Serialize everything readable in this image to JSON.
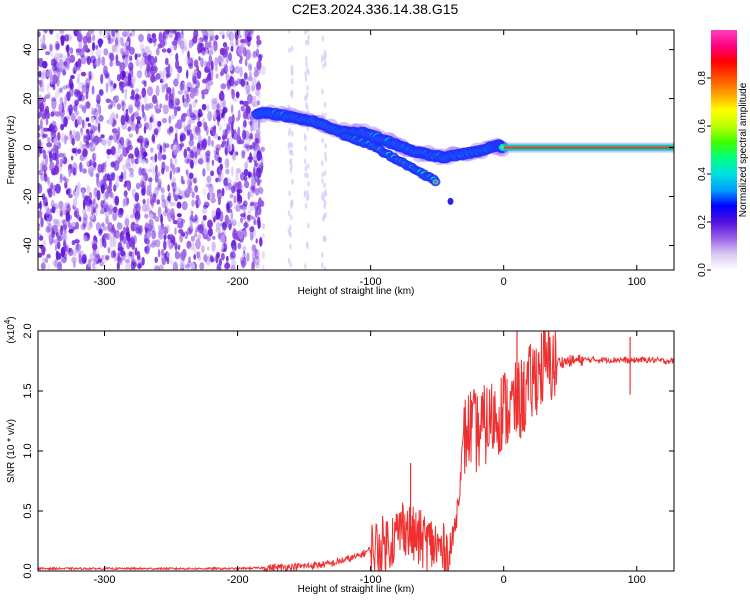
{
  "title": "C2E3.2024.336.14.38.G15",
  "colors": {
    "snr_line": "#ee3030",
    "spectrum_background_scatter": "#7b2bd6",
    "ridge_core": "#ff4040",
    "ridge_mid": "#00e0d0",
    "ridge_outer": "#2030ff"
  },
  "chart_data": [
    {
      "type": "heatmap",
      "name": "spectrogram",
      "xlabel": "Height of straight line (km)",
      "ylabel": "Frequency (Hz)",
      "xlim": [
        -350,
        128
      ],
      "ylim": [
        -50,
        48
      ],
      "xticks": [
        -300,
        -200,
        -100,
        0,
        100
      ],
      "yticks": [
        -40,
        -20,
        0,
        20,
        40
      ],
      "colorbar": {
        "label": "Normalized spectral amplitude",
        "range": [
          0.0,
          1.0
        ],
        "ticks": [
          "0.0",
          "0.2",
          "0.4",
          "0.6",
          "0.8"
        ],
        "colormap": [
          "#ffffff",
          "#d8c8f2",
          "#9a60e8",
          "#5010e0",
          "#0000ff",
          "#00a0ff",
          "#00e0e0",
          "#00ff80",
          "#40ff00",
          "#c0ff00",
          "#ffff00",
          "#ffa000",
          "#ff5000",
          "#ff0000",
          "#ff0080",
          "#ff40c0"
        ]
      },
      "noise_region_x": [
        -350,
        -185
      ],
      "ridge": {
        "x": [
          -185,
          -175,
          -165,
          -155,
          -145,
          -135,
          -125,
          -115,
          -105,
          -95,
          -85,
          -75,
          -65,
          -55,
          -45,
          -35,
          -25,
          -15,
          -5,
          0,
          20,
          40,
          60,
          80,
          100,
          128
        ],
        "y": [
          14,
          14,
          13,
          12,
          11,
          9,
          7,
          6,
          6,
          4,
          2,
          0,
          -2,
          -3,
          -4,
          -3,
          -2,
          -1,
          1,
          0,
          0,
          0,
          0,
          0,
          0,
          0
        ]
      },
      "branch": {
        "x": [
          -120,
          -110,
          -100,
          -90,
          -80,
          -70,
          -60,
          -50
        ],
        "y": [
          5,
          3,
          1,
          -2,
          -5,
          -8,
          -11,
          -14
        ]
      },
      "isolated_points": [
        {
          "x": -40,
          "y": -22
        }
      ]
    },
    {
      "type": "line",
      "name": "snr",
      "xlabel": "Height of straight line (km)",
      "ylabel": "SNR (10 * v/v)",
      "multiplier_label": "(x10",
      "multiplier_exp": "4",
      "multiplier_close": ")",
      "xlim": [
        -350,
        128
      ],
      "ylim": [
        0,
        2.0
      ],
      "xticks": [
        -300,
        -200,
        -100,
        0,
        100
      ],
      "yticks": [
        "0.0",
        "0.5",
        "1.0",
        "1.5",
        "2.0"
      ],
      "series": [
        {
          "x": [
            -350,
            -300,
            -250,
            -200,
            -170,
            -150,
            -130,
            -110,
            -100,
            -90,
            -80,
            -75,
            -70,
            -60,
            -50,
            -45,
            -40,
            -35,
            -30,
            -25,
            -20,
            -15,
            -10,
            -5,
            0,
            5,
            10,
            15,
            20,
            25,
            30,
            35,
            40,
            50,
            60,
            70,
            80,
            90,
            95,
            100,
            110,
            120,
            128
          ],
          "y": [
            0.02,
            0.02,
            0.02,
            0.02,
            0.03,
            0.04,
            0.06,
            0.12,
            0.18,
            0.22,
            0.3,
            0.4,
            0.3,
            0.25,
            0.2,
            0.15,
            0.15,
            0.5,
            1.1,
            1.2,
            1.15,
            1.2,
            1.25,
            1.3,
            1.35,
            1.35,
            1.4,
            1.45,
            1.55,
            1.65,
            1.7,
            1.72,
            1.74,
            1.75,
            1.76,
            1.76,
            1.76,
            1.76,
            1.75,
            1.76,
            1.76,
            1.75,
            1.75
          ]
        }
      ],
      "spikes": [
        {
          "x": -70,
          "y": 0.9
        },
        {
          "x": 10,
          "y": 2.0
        },
        {
          "x": 95,
          "y": 1.95
        },
        {
          "x": 95,
          "y": 1.47
        }
      ]
    }
  ]
}
